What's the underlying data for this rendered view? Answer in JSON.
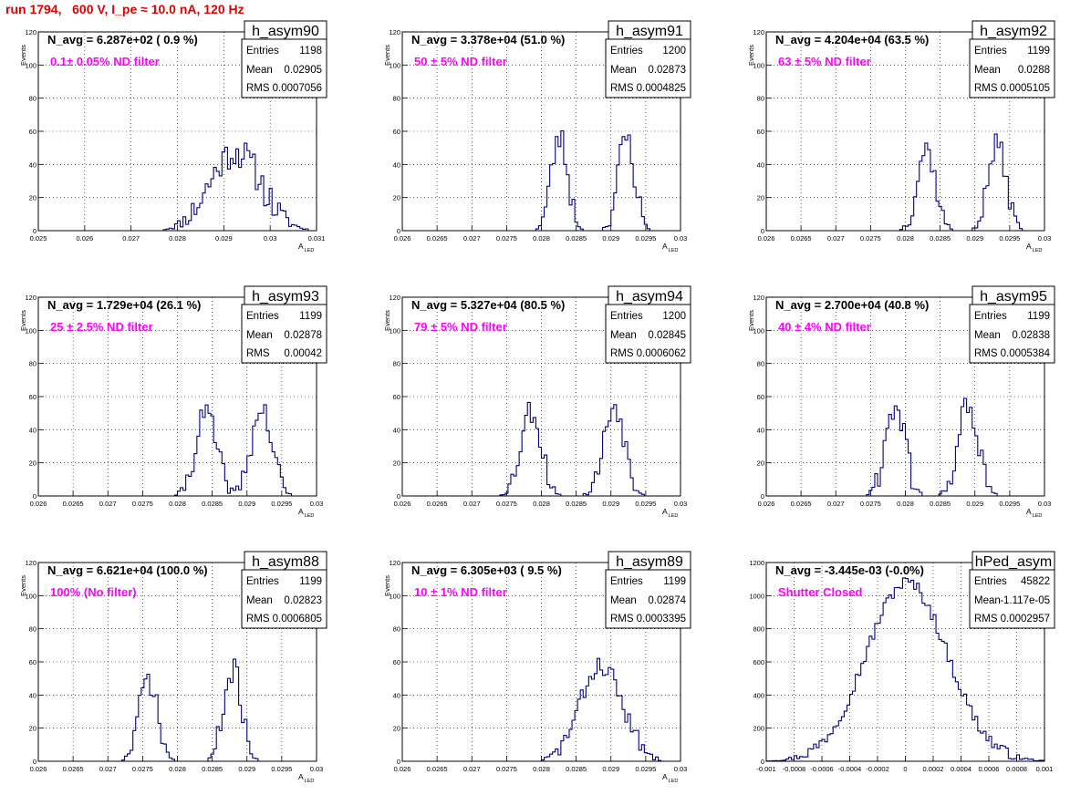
{
  "page_title": "run 1794,   600 V, I_pe ≈ 10.0 nA, 120 Hz",
  "colors": {
    "histogram_line": "#000080",
    "annotation": "#ff00ff",
    "title": "#e00000"
  },
  "stats_labels": {
    "entries": "Entries",
    "mean": "Mean",
    "rms": "RMS"
  },
  "y_axis_label": "Events",
  "x_axis_label": "A",
  "x_axis_label_sub": "LED",
  "panels": [
    {
      "name": "h_asym90",
      "navg": "N_avg = 6.287e+02 ( 0.9 %)",
      "filter": "0.1± 0.05% ND filter",
      "entries": "1198",
      "mean": "0.02905",
      "rms": "0.0007056",
      "xlim": [
        0.025,
        0.031
      ],
      "ylim": [
        0,
        120
      ],
      "xticks": [
        "0.025",
        "0.026",
        "0.027",
        "0.028",
        "0.029",
        "0.03",
        "0.031"
      ],
      "yticks": [
        "0",
        "20",
        "40",
        "60",
        "80",
        "100",
        "120"
      ],
      "peaks": [
        {
          "center": 0.02925,
          "sigma": 0.00055,
          "height": 48
        }
      ],
      "seed": 11,
      "noise": 10
    },
    {
      "name": "h_asym91",
      "navg": "N_avg = 3.378e+04 (51.0 %)",
      "filter": "50 ± 5% ND filter",
      "entries": "1200",
      "mean": "0.02873",
      "rms": "0.0004825",
      "xlim": [
        0.026,
        0.03
      ],
      "ylim": [
        0,
        120
      ],
      "xticks": [
        "0.026",
        "0.0265",
        "0.027",
        "0.0275",
        "0.028",
        "0.0285",
        "0.029",
        "0.0295",
        "0.03"
      ],
      "yticks": [
        "0",
        "20",
        "40",
        "60",
        "80",
        "100",
        "120"
      ],
      "peaks": [
        {
          "center": 0.02826,
          "sigma": 0.00012,
          "height": 56
        },
        {
          "center": 0.02922,
          "sigma": 0.00012,
          "height": 56
        }
      ],
      "seed": 23,
      "noise": 9
    },
    {
      "name": "h_asym92",
      "navg": "N_avg = 4.204e+04 (63.5 %)",
      "filter": "63 ± 5% ND filter",
      "entries": "1199",
      "mean": "0.0288",
      "rms": "0.0005105",
      "xlim": [
        0.026,
        0.03
      ],
      "ylim": [
        0,
        120
      ],
      "xticks": [
        "0.026",
        "0.0265",
        "0.027",
        "0.0275",
        "0.028",
        "0.0285",
        "0.029",
        "0.0295",
        "0.03"
      ],
      "yticks": [
        "0",
        "20",
        "40",
        "60",
        "80",
        "100",
        "120"
      ],
      "peaks": [
        {
          "center": 0.0283,
          "sigma": 0.00013,
          "height": 50
        },
        {
          "center": 0.02932,
          "sigma": 0.00013,
          "height": 52
        }
      ],
      "seed": 37,
      "noise": 7
    },
    {
      "name": "h_asym93",
      "navg": "N_avg = 1.729e+04 (26.1 %)",
      "filter": "25 ± 2.5% ND filter",
      "entries": "1199",
      "mean": "0.02878",
      "rms": "0.00042",
      "xlim": [
        0.026,
        0.03
      ],
      "ylim": [
        0,
        120
      ],
      "xticks": [
        "0.026",
        "0.0265",
        "0.027",
        "0.0275",
        "0.028",
        "0.0285",
        "0.029",
        "0.0295",
        "0.03"
      ],
      "yticks": [
        "0",
        "20",
        "40",
        "60",
        "80",
        "100",
        "120"
      ],
      "peaks": [
        {
          "center": 0.02841,
          "sigma": 0.00015,
          "height": 50
        },
        {
          "center": 0.02921,
          "sigma": 0.00015,
          "height": 52
        }
      ],
      "seed": 41,
      "noise": 8
    },
    {
      "name": "h_asym94",
      "navg": "N_avg = 5.327e+04 (80.5 %)",
      "filter": "79 ± 5% ND filter",
      "entries": "1200",
      "mean": "0.02845",
      "rms": "0.0006062",
      "xlim": [
        0.026,
        0.03
      ],
      "ylim": [
        0,
        120
      ],
      "xticks": [
        "0.026",
        "0.0265",
        "0.027",
        "0.0275",
        "0.028",
        "0.0285",
        "0.029",
        "0.0295",
        "0.03"
      ],
      "yticks": [
        "0",
        "20",
        "40",
        "60",
        "80",
        "100",
        "120"
      ],
      "peaks": [
        {
          "center": 0.02785,
          "sigma": 0.00015,
          "height": 52
        },
        {
          "center": 0.02905,
          "sigma": 0.00015,
          "height": 55
        }
      ],
      "seed": 53,
      "noise": 8
    },
    {
      "name": "h_asym95",
      "navg": "N_avg = 2.700e+04 (40.8 %)",
      "filter": "40 ± 4% ND filter",
      "entries": "1199",
      "mean": "0.02838",
      "rms": "0.0005384",
      "xlim": [
        0.026,
        0.03
      ],
      "ylim": [
        0,
        120
      ],
      "xticks": [
        "0.026",
        "0.0265",
        "0.027",
        "0.0275",
        "0.028",
        "0.0285",
        "0.029",
        "0.0295",
        "0.03"
      ],
      "yticks": [
        "0",
        "20",
        "40",
        "60",
        "80",
        "100",
        "120"
      ],
      "peaks": [
        {
          "center": 0.02785,
          "sigma": 0.00014,
          "height": 55
        },
        {
          "center": 0.0289,
          "sigma": 0.00014,
          "height": 56
        }
      ],
      "seed": 61,
      "noise": 9
    },
    {
      "name": "h_asym88",
      "navg": "N_avg = 6.621e+04 (100.0 %)",
      "filter": "100% (No filter)",
      "entries": "1199",
      "mean": "0.02823",
      "rms": "0.0006805",
      "xlim": [
        0.026,
        0.03
      ],
      "ylim": [
        0,
        120
      ],
      "xticks": [
        "0.026",
        "0.0265",
        "0.027",
        "0.0275",
        "0.028",
        "0.0285",
        "0.029",
        "0.0295",
        "0.03"
      ],
      "yticks": [
        "0",
        "20",
        "40",
        "60",
        "80",
        "100",
        "120"
      ],
      "peaks": [
        {
          "center": 0.02758,
          "sigma": 0.00013,
          "height": 50
        },
        {
          "center": 0.0288,
          "sigma": 0.00013,
          "height": 55
        }
      ],
      "seed": 71,
      "noise": 8
    },
    {
      "name": "h_asym89",
      "navg": "N_avg = 6.305e+03 ( 9.5 %)",
      "filter": "10 ± 1% ND filter",
      "entries": "1199",
      "mean": "0.02874",
      "rms": "0.0003395",
      "xlim": [
        0.026,
        0.03
      ],
      "ylim": [
        0,
        120
      ],
      "xticks": [
        "0.026",
        "0.0265",
        "0.027",
        "0.0275",
        "0.028",
        "0.0285",
        "0.029",
        "0.0295",
        "0.03"
      ],
      "yticks": [
        "0",
        "20",
        "40",
        "60",
        "80",
        "100",
        "120"
      ],
      "peaks": [
        {
          "center": 0.02886,
          "sigma": 0.0003,
          "height": 58
        }
      ],
      "seed": 83,
      "noise": 6
    },
    {
      "name": "hPed_asym",
      "navg": "N_avg = -3.445e-03 (-0.0%)",
      "filter": "Shutter Closed",
      "entries": "45822",
      "mean": "-1.117e-05",
      "rms": "0.0002957",
      "xlim": [
        -0.001,
        0.001
      ],
      "ylim": [
        0,
        1200
      ],
      "xticks": [
        "-0.001",
        "-0.0008",
        "-0.0006",
        "-0.0004",
        "-0.0002",
        "0",
        "0.0002",
        "0.0004",
        "0.0006",
        "0.0008",
        "0.001"
      ],
      "yticks": [
        "0",
        "200",
        "400",
        "600",
        "800",
        "1000",
        "1200"
      ],
      "peaks": [
        {
          "center": 1e-05,
          "sigma": 0.00029,
          "height": 1080
        }
      ],
      "seed": 97,
      "noise": 40
    }
  ],
  "chart_data": [
    {
      "type": "histogram",
      "name": "h_asym90",
      "xlabel": "A LED",
      "ylabel": "Events",
      "xlim": [
        0.025,
        0.031
      ],
      "ylim": [
        0,
        120
      ],
      "entries": 1198,
      "mean": 0.02905,
      "rms": 0.0007056,
      "approx_peak_centers": [
        0.02925
      ],
      "approx_peak_heights": [
        55
      ]
    },
    {
      "type": "histogram",
      "name": "h_asym91",
      "xlabel": "A LED",
      "ylabel": "Events",
      "xlim": [
        0.026,
        0.03
      ],
      "ylim": [
        0,
        120
      ],
      "entries": 1200,
      "mean": 0.02873,
      "rms": 0.0004825,
      "approx_peak_centers": [
        0.02826,
        0.02922
      ],
      "approx_peak_heights": [
        65,
        71
      ]
    },
    {
      "type": "histogram",
      "name": "h_asym92",
      "xlabel": "A LED",
      "ylabel": "Events",
      "xlim": [
        0.026,
        0.03
      ],
      "ylim": [
        0,
        120
      ],
      "entries": 1199,
      "mean": 0.0288,
      "rms": 0.0005105,
      "approx_peak_centers": [
        0.0283,
        0.02932
      ],
      "approx_peak_heights": [
        58,
        63
      ]
    },
    {
      "type": "histogram",
      "name": "h_asym93",
      "xlabel": "A LED",
      "ylabel": "Events",
      "xlim": [
        0.026,
        0.03
      ],
      "ylim": [
        0,
        120
      ],
      "entries": 1199,
      "mean": 0.02878,
      "rms": 0.00042,
      "approx_peak_centers": [
        0.02841,
        0.02921
      ],
      "approx_peak_heights": [
        56,
        61
      ]
    },
    {
      "type": "histogram",
      "name": "h_asym94",
      "xlabel": "A LED",
      "ylabel": "Events",
      "xlim": [
        0.026,
        0.03
      ],
      "ylim": [
        0,
        120
      ],
      "entries": 1200,
      "mean": 0.02845,
      "rms": 0.0006062,
      "approx_peak_centers": [
        0.02785,
        0.02905
      ],
      "approx_peak_heights": [
        59,
        62
      ]
    },
    {
      "type": "histogram",
      "name": "h_asym95",
      "xlabel": "A LED",
      "ylabel": "Events",
      "xlim": [
        0.026,
        0.03
      ],
      "ylim": [
        0,
        120
      ],
      "entries": 1199,
      "mean": 0.02838,
      "rms": 0.0005384,
      "approx_peak_centers": [
        0.02785,
        0.0289
      ],
      "approx_peak_heights": [
        65,
        67
      ]
    },
    {
      "type": "histogram",
      "name": "h_asym88",
      "xlabel": "A LED",
      "ylabel": "Events",
      "xlim": [
        0.026,
        0.03
      ],
      "ylim": [
        0,
        120
      ],
      "entries": 1199,
      "mean": 0.02823,
      "rms": 0.0006805,
      "approx_peak_centers": [
        0.02758,
        0.0288
      ],
      "approx_peak_heights": [
        58,
        64
      ]
    },
    {
      "type": "histogram",
      "name": "h_asym89",
      "xlabel": "A LED",
      "ylabel": "Events",
      "xlim": [
        0.026,
        0.03
      ],
      "ylim": [
        0,
        120
      ],
      "entries": 1199,
      "mean": 0.02874,
      "rms": 0.0003395,
      "approx_peak_centers": [
        0.02886
      ],
      "approx_peak_heights": [
        66
      ]
    },
    {
      "type": "histogram",
      "name": "hPed_asym",
      "xlabel": "",
      "ylabel": "",
      "xlim": [
        -0.001,
        0.001
      ],
      "ylim": [
        0,
        1200
      ],
      "entries": 45822,
      "mean": -1.117e-05,
      "rms": 0.0002957,
      "approx_peak_centers": [
        1e-05
      ],
      "approx_peak_heights": [
        1110
      ]
    }
  ]
}
